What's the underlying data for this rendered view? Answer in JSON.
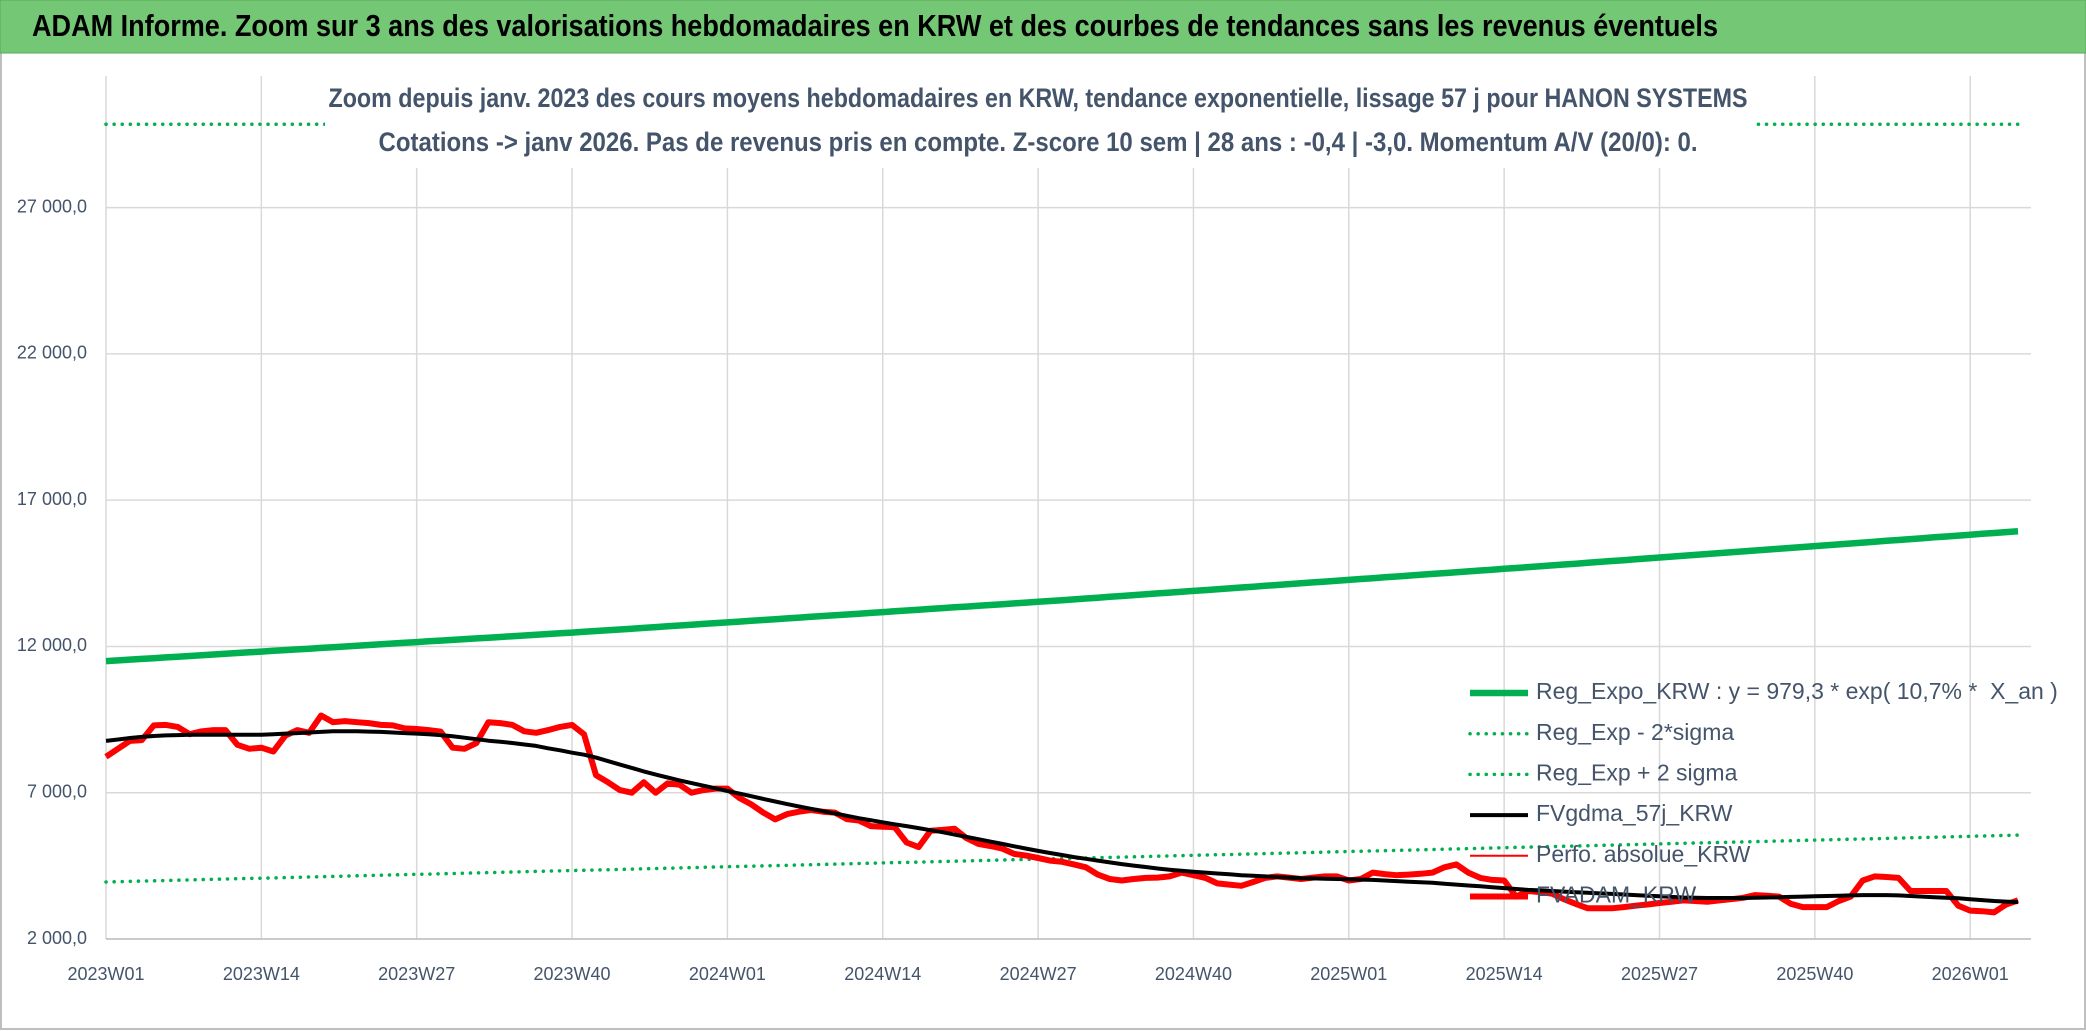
{
  "chart_data": {
    "type": "line",
    "title": "ADAM Informe. Zoom sur 3 ans des valorisations hebdomadaires en KRW et des courbes de tendances sans les revenus éventuels",
    "subtitle": [
      "Zoom depuis janv. 2023 des cours moyens hebdomadaires en KRW, tendance exponentielle, lissage 57 j pour HANON SYSTEMS",
      "Cotations -> janv 2026. Pas de revenus pris en compte. Z-score 10 sem | 28 ans : -0,4 | -3,0. Momentum A/V (20/0): 0."
    ],
    "categories": [
      "2023W01",
      null,
      null,
      null,
      null,
      null,
      null,
      null,
      null,
      null,
      null,
      null,
      null,
      "2023W14",
      null,
      null,
      null,
      null,
      null,
      null,
      null,
      null,
      null,
      null,
      null,
      null,
      "2023W27",
      null,
      null,
      null,
      null,
      null,
      null,
      null,
      null,
      null,
      null,
      null,
      null,
      "2023W40",
      null,
      null,
      null,
      null,
      null,
      null,
      null,
      null,
      null,
      null,
      null,
      null,
      "2024W01",
      null,
      null,
      null,
      null,
      null,
      null,
      null,
      null,
      null,
      null,
      null,
      null,
      "2024W14",
      null,
      null,
      null,
      null,
      null,
      null,
      null,
      null,
      null,
      null,
      null,
      null,
      "2024W27",
      null,
      null,
      null,
      null,
      null,
      null,
      null,
      null,
      null,
      null,
      null,
      null,
      "2024W40",
      null,
      null,
      null,
      null,
      null,
      null,
      null,
      null,
      null,
      null,
      null,
      null,
      "2025W01",
      null,
      null,
      null,
      null,
      null,
      null,
      null,
      null,
      null,
      null,
      null,
      null,
      "2025W14",
      null,
      null,
      null,
      null,
      null,
      null,
      null,
      null,
      null,
      null,
      null,
      null,
      "2025W27",
      null,
      null,
      null,
      null,
      null,
      null,
      null,
      null,
      null,
      null,
      null,
      null,
      "2025W40",
      null,
      null,
      null,
      null,
      null,
      null,
      null,
      null,
      null,
      null,
      null,
      null,
      "2026W01",
      null,
      null,
      null,
      null
    ],
    "ylim": [
      2000,
      31500
    ],
    "yticks": [
      {
        "value": 2000,
        "label": "2 000,0"
      },
      {
        "value": 7000,
        "label": "7 000,0"
      },
      {
        "value": 12000,
        "label": "12 000,0"
      },
      {
        "value": 17000,
        "label": "17 000,0"
      },
      {
        "value": 22000,
        "label": "22 000,0"
      },
      {
        "value": 27000,
        "label": "27 000,0"
      }
    ],
    "grid": true,
    "legend": "lower right",
    "series": [
      {
        "name": "Reg_Expo_KRW : y = 979,3 * exp( 10,7% *  X_an )",
        "color": "#00b050",
        "line_style": "solid",
        "values": [
          11500,
          11525,
          11550,
          11575,
          11600,
          11625,
          11650,
          11675,
          11700,
          11725,
          11750,
          11775,
          11800,
          11825,
          11850,
          11875,
          11900,
          11925,
          11950,
          11975,
          12000,
          12025,
          12050,
          12075,
          12100,
          12125,
          12150,
          12175,
          12200,
          12225,
          12250,
          12275,
          12300,
          12325,
          12350,
          12375,
          12400,
          12425,
          12450,
          12475,
          12500,
          12527,
          12554,
          12581,
          12608,
          12635,
          12662,
          12689,
          12716,
          12743,
          12770,
          12797,
          12824,
          12851,
          12878,
          12905,
          12932,
          12959,
          12986,
          13013,
          13040,
          13067,
          13094,
          13121,
          13148,
          13175,
          13202,
          13229,
          13256,
          13283,
          13310,
          13337,
          13364,
          13391,
          13418,
          13445,
          13472,
          13499,
          13526,
          13553,
          13580,
          13609,
          13638,
          13667,
          13696,
          13725,
          13754,
          13783,
          13812,
          13841,
          13870,
          13899,
          13928,
          13957,
          13986,
          14015,
          14044,
          14073,
          14102,
          14131,
          14160,
          14189,
          14218,
          14247,
          14276,
          14305,
          14334,
          14363,
          14392,
          14421,
          14450,
          14479,
          14508,
          14537,
          14566,
          14595,
          14624,
          14653,
          14682,
          14711,
          14740,
          14770,
          14800,
          14830,
          14860,
          14890,
          14920,
          14950,
          14980,
          15010,
          15040,
          15070,
          15100,
          15130,
          15160,
          15190,
          15220,
          15250,
          15280,
          15310,
          15340,
          15370,
          15400,
          15430,
          15460,
          15490,
          15520,
          15550,
          15580,
          15610,
          15640,
          15670,
          15700,
          15730,
          15760,
          15790,
          15820,
          15850,
          15880,
          15910,
          15940
        ]
      },
      {
        "name": "Reg_Exp - 2*sigma",
        "color": "#00b050",
        "line_style": "dotted",
        "values": [
          3950,
          3960,
          3970,
          3980,
          3990,
          4000,
          4010,
          4020,
          4030,
          4040,
          4050,
          4060,
          4070,
          4080,
          4090,
          4100,
          4110,
          4120,
          4130,
          4140,
          4150,
          4160,
          4170,
          4180,
          4190,
          4200,
          4210,
          4220,
          4230,
          4240,
          4250,
          4260,
          4270,
          4280,
          4290,
          4300,
          4310,
          4320,
          4330,
          4340,
          4350,
          4360,
          4370,
          4380,
          4390,
          4400,
          4410,
          4420,
          4430,
          4440,
          4450,
          4460,
          4470,
          4480,
          4490,
          4500,
          4510,
          4520,
          4530,
          4540,
          4550,
          4560,
          4570,
          4580,
          4590,
          4600,
          4610,
          4620,
          4630,
          4640,
          4650,
          4660,
          4670,
          4680,
          4690,
          4700,
          4710,
          4720,
          4730,
          4740,
          4750,
          4760,
          4770,
          4780,
          4790,
          4800,
          4810,
          4820,
          4830,
          4840,
          4850,
          4860,
          4870,
          4880,
          4890,
          4900,
          4910,
          4920,
          4930,
          4940,
          4950,
          4960,
          4970,
          4980,
          4990,
          5000,
          5010,
          5020,
          5030,
          5040,
          5050,
          5060,
          5070,
          5080,
          5090,
          5100,
          5110,
          5120,
          5130,
          5140,
          5150,
          5160,
          5170,
          5180,
          5190,
          5200,
          5210,
          5220,
          5230,
          5240,
          5250,
          5260,
          5270,
          5280,
          5290,
          5300,
          5310,
          5320,
          5330,
          5340,
          5350,
          5360,
          5370,
          5380,
          5390,
          5400,
          5410,
          5420,
          5430,
          5440,
          5450,
          5460,
          5470,
          5480,
          5490,
          5500,
          5510,
          5520,
          5530,
          5540,
          5550
        ]
      },
      {
        "name": "Reg_Exp + 2 sigma",
        "color": "#00b050",
        "line_style": "dotted",
        "values": [
          29850,
          29850,
          29850,
          29850,
          29850,
          29850,
          29850,
          29850,
          29850,
          29850,
          29850,
          29850,
          29850,
          29850,
          29850,
          29850,
          29850,
          29850,
          29850,
          29850,
          29850,
          29850,
          29850,
          29850,
          29850,
          29850,
          29850,
          29850,
          29850,
          29850,
          29850,
          29850,
          29850,
          29850,
          29850,
          29850,
          29850,
          29850,
          29850,
          29850,
          29850,
          29850,
          29850,
          29850,
          29850,
          29850,
          29850,
          29850,
          29850,
          29850,
          29850,
          29850,
          29850,
          29850,
          29850,
          29850,
          29850,
          29850,
          29850,
          29850,
          29850,
          29850,
          29850,
          29850,
          29850,
          29850,
          29850,
          29850,
          29850,
          29850,
          29850,
          29850,
          29850,
          29850,
          29850,
          29850,
          29850,
          29850,
          29850,
          29850,
          29850,
          29850,
          29850,
          29850,
          29850,
          29850,
          29850,
          29850,
          29850,
          29850,
          29850,
          29850,
          29850,
          29850,
          29850,
          29850,
          29850,
          29850,
          29850,
          29850,
          29850,
          29850,
          29850,
          29850,
          29850,
          29850,
          29850,
          29850,
          29850,
          29850,
          29850,
          29850,
          29850,
          29850,
          29850,
          29850,
          29850,
          29850,
          29850,
          29850,
          29850,
          29850,
          29850,
          29850,
          29850,
          29850,
          29850,
          29850,
          29850,
          29850,
          29850,
          29850,
          29850,
          29850,
          29850,
          29850,
          29850,
          29850,
          29850,
          29850,
          29850,
          29850,
          29850,
          29850,
          29850,
          29850,
          29850,
          29850,
          29850,
          29850,
          29850,
          29850,
          29850,
          29850,
          29850,
          29850,
          29850,
          29850,
          29850,
          29850,
          29850
        ]
      },
      {
        "name": "FVgdma_57j_KRW",
        "color": "#000000",
        "line_style": "solid",
        "values": [
          8770,
          8820,
          8870,
          8910,
          8940,
          8960,
          8970,
          8980,
          8980,
          8980,
          8980,
          8980,
          8980,
          8980,
          9000,
          9020,
          9040,
          9060,
          9080,
          9100,
          9100,
          9100,
          9090,
          9080,
          9060,
          9040,
          9020,
          9000,
          8970,
          8930,
          8880,
          8830,
          8780,
          8740,
          8700,
          8650,
          8600,
          8520,
          8450,
          8370,
          8300,
          8200,
          8080,
          7960,
          7850,
          7730,
          7620,
          7520,
          7420,
          7330,
          7240,
          7150,
          7060,
          6970,
          6880,
          6790,
          6700,
          6610,
          6530,
          6450,
          6370,
          6290,
          6210,
          6130,
          6060,
          5990,
          5920,
          5860,
          5790,
          5720,
          5650,
          5570,
          5490,
          5410,
          5330,
          5250,
          5170,
          5090,
          5010,
          4940,
          4870,
          4800,
          4740,
          4680,
          4620,
          4560,
          4510,
          4460,
          4410,
          4370,
          4330,
          4300,
          4270,
          4240,
          4210,
          4180,
          4160,
          4140,
          4120,
          4100,
          4080,
          4070,
          4060,
          4050,
          4040,
          4030,
          4020,
          4000,
          3980,
          3960,
          3940,
          3920,
          3890,
          3860,
          3830,
          3800,
          3770,
          3740,
          3710,
          3680,
          3660,
          3640,
          3620,
          3600,
          3580,
          3560,
          3540,
          3520,
          3500,
          3480,
          3460,
          3440,
          3420,
          3410,
          3400,
          3400,
          3400,
          3400,
          3410,
          3420,
          3430,
          3440,
          3450,
          3460,
          3470,
          3480,
          3490,
          3500,
          3500,
          3500,
          3490,
          3470,
          3450,
          3430,
          3410,
          3390,
          3360,
          3330,
          3300,
          3280,
          3260
        ]
      },
      {
        "name": "Perfo. absolue_KRW",
        "color": "#ff0000",
        "line_style": "solid",
        "values": [
          8230,
          8500,
          8770,
          8800,
          9300,
          9320,
          9250,
          9000,
          9100,
          9140,
          9140,
          8640,
          8500,
          8540,
          8410,
          8950,
          9140,
          9050,
          9640,
          9410,
          9450,
          9410,
          9380,
          9320,
          9300,
          9200,
          9180,
          9140,
          9090,
          8540,
          8500,
          8700,
          9410,
          9380,
          9320,
          9100,
          9050,
          9140,
          9250,
          9320,
          9000,
          7600,
          7360,
          7090,
          7000,
          7360,
          7000,
          7320,
          7270,
          7000,
          7090,
          7140,
          7140,
          6820,
          6600,
          6320,
          6090,
          6270,
          6350,
          6410,
          6350,
          6320,
          6100,
          6050,
          5860,
          5840,
          5820,
          5300,
          5140,
          5700,
          5730,
          5770,
          5450,
          5250,
          5180,
          5090,
          4910,
          4850,
          4770,
          4680,
          4640,
          4550,
          4450,
          4200,
          4050,
          4000,
          4050,
          4090,
          4100,
          4140,
          4270,
          4180,
          4090,
          3900,
          3860,
          3820,
          3950,
          4090,
          4140,
          4100,
          4050,
          4100,
          4140,
          4140,
          4000,
          4050,
          4270,
          4220,
          4180,
          4200,
          4230,
          4270,
          4450,
          4550,
          4270,
          4090,
          4020,
          4000,
          3450,
          3640,
          3600,
          3550,
          3360,
          3200,
          3050,
          3050,
          3050,
          3090,
          3140,
          3180,
          3230,
          3270,
          3320,
          3300,
          3270,
          3320,
          3360,
          3410,
          3500,
          3480,
          3450,
          3200,
          3090,
          3090,
          3090,
          3300,
          3450,
          4000,
          4140,
          4120,
          4090,
          3640,
          3640,
          3640,
          3640,
          3140,
          2970,
          2950,
          2910,
          3180,
          3320
        ]
      },
      {
        "name": "FVADAM_KRW",
        "color": "#ff0000",
        "line_style": "solid",
        "values": [
          8230,
          8500,
          8770,
          8800,
          9300,
          9320,
          9250,
          9000,
          9100,
          9140,
          9140,
          8640,
          8500,
          8540,
          8410,
          8950,
          9140,
          9050,
          9640,
          9410,
          9450,
          9410,
          9380,
          9320,
          9300,
          9200,
          9180,
          9140,
          9090,
          8540,
          8500,
          8700,
          9410,
          9380,
          9320,
          9100,
          9050,
          9140,
          9250,
          9320,
          9000,
          7600,
          7360,
          7090,
          7000,
          7360,
          7000,
          7320,
          7270,
          7000,
          7090,
          7140,
          7140,
          6820,
          6600,
          6320,
          6090,
          6270,
          6350,
          6410,
          6350,
          6320,
          6100,
          6050,
          5860,
          5840,
          5820,
          5300,
          5140,
          5700,
          5730,
          5770,
          5450,
          5250,
          5180,
          5090,
          4910,
          4850,
          4770,
          4680,
          4640,
          4550,
          4450,
          4200,
          4050,
          4000,
          4050,
          4090,
          4100,
          4140,
          4270,
          4180,
          4090,
          3900,
          3860,
          3820,
          3950,
          4090,
          4140,
          4100,
          4050,
          4100,
          4140,
          4140,
          4000,
          4050,
          4270,
          4220,
          4180,
          4200,
          4230,
          4270,
          4450,
          4550,
          4270,
          4090,
          4020,
          4000,
          3450,
          3640,
          3600,
          3550,
          3360,
          3200,
          3050,
          3050,
          3050,
          3090,
          3140,
          3180,
          3230,
          3270,
          3320,
          3300,
          3270,
          3320,
          3360,
          3410,
          3500,
          3480,
          3450,
          3200,
          3090,
          3090,
          3090,
          3300,
          3450,
          4000,
          4140,
          4120,
          4090,
          3640,
          3640,
          3640,
          3640,
          3140,
          2970,
          2950,
          2910,
          3180,
          3320
        ]
      }
    ]
  }
}
